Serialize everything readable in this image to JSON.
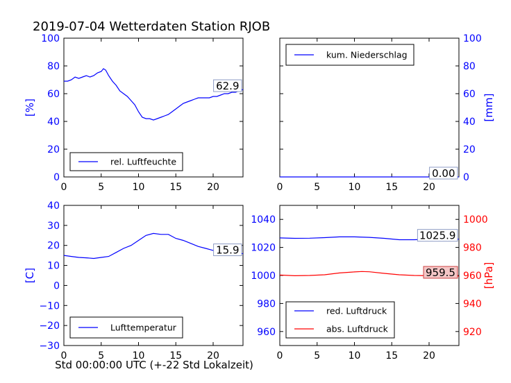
{
  "page_title": "2019-07-04 Wetterdaten Station RJOB",
  "xlabel": "Std 00:00:00 UTC (+-22 Std Lokalzeit)",
  "colors": {
    "primary": "#0000ff",
    "secondary": "#ff0000",
    "axis": "#000000"
  },
  "chart_data": [
    {
      "type": "line",
      "panel": "top-left",
      "xlim": [
        0,
        24
      ],
      "ylim": [
        0,
        100
      ],
      "xticks": [
        0,
        5,
        10,
        15,
        20
      ],
      "yticks": [
        0,
        20,
        40,
        60,
        80,
        100
      ],
      "ylabel": "[%]",
      "ylabel_side": "left",
      "ylabel_color": "#0000ff",
      "ytick_color": "#0000ff",
      "legend_placement": "lower-left",
      "series": [
        {
          "name": "rel. Luftfeuchte",
          "color": "#0000ff",
          "x": [
            0,
            0.5,
            1,
            1.5,
            2,
            2.5,
            3,
            3.5,
            4,
            4.5,
            5,
            5.3,
            5.6,
            6,
            6.5,
            7,
            7.5,
            8,
            8.5,
            9,
            9.5,
            10,
            10.5,
            11,
            11.5,
            12,
            12.5,
            13,
            13.5,
            14,
            14.5,
            15,
            15.5,
            16,
            16.5,
            17,
            17.5,
            18,
            18.5,
            19,
            19.5,
            20,
            20.5,
            21,
            21.5,
            22,
            22.5,
            23,
            23.5,
            24
          ],
          "y": [
            69,
            69,
            70,
            72,
            71,
            72,
            73,
            72,
            73,
            75,
            76,
            78,
            77,
            73,
            69,
            66,
            62,
            60,
            58,
            55,
            52,
            47,
            43,
            42,
            42,
            41,
            42,
            43,
            44,
            45,
            47,
            49,
            51,
            53,
            54,
            55,
            56,
            57,
            57,
            57,
            57,
            58,
            58,
            59,
            60,
            60,
            61,
            61,
            62,
            63
          ]
        }
      ],
      "last_value_label": "62.9"
    },
    {
      "type": "line",
      "panel": "top-right",
      "xlim": [
        0,
        24
      ],
      "ylim": [
        0,
        100
      ],
      "xticks": [
        0,
        5,
        10,
        15,
        20
      ],
      "yticks": [
        0,
        20,
        40,
        60,
        80,
        100
      ],
      "ylabel": "[mm]",
      "ylabel_side": "right",
      "ylabel_color": "#0000ff",
      "ytick_color": "#0000ff",
      "legend_placement": "upper-left",
      "series": [
        {
          "name": "kum. Niederschlag",
          "color": "#0000ff",
          "x": [
            0,
            24
          ],
          "y": [
            0,
            0
          ]
        }
      ],
      "last_value_label": "0.00"
    },
    {
      "type": "line",
      "panel": "bottom-left",
      "xlim": [
        0,
        24
      ],
      "ylim": [
        -30,
        40
      ],
      "xticks": [
        0,
        5,
        10,
        15,
        20
      ],
      "yticks": [
        -30,
        -20,
        -10,
        0,
        10,
        20,
        30,
        40
      ],
      "ylabel": "[C]",
      "ylabel_side": "left",
      "ylabel_color": "#0000ff",
      "ytick_color": "#0000ff",
      "legend_placement": "lower-left",
      "series": [
        {
          "name": "Lufttemperatur",
          "color": "#0000ff",
          "x": [
            0,
            1,
            2,
            3,
            4,
            5,
            6,
            7,
            8,
            9,
            10,
            11,
            12,
            13,
            14,
            15,
            16,
            17,
            18,
            19,
            20,
            21,
            22,
            23,
            24
          ],
          "y": [
            15,
            14.5,
            14,
            13.8,
            13.5,
            14,
            14.5,
            16.5,
            18.5,
            20,
            22.5,
            25,
            26,
            25.5,
            25.5,
            23.5,
            22.5,
            21,
            19.5,
            18.5,
            17.5,
            17,
            16.5,
            16,
            15.9
          ]
        }
      ],
      "last_value_label": "15.9"
    },
    {
      "type": "line",
      "panel": "bottom-right",
      "xlim": [
        0,
        24
      ],
      "ylim": [
        950,
        1050
      ],
      "ylim_right": [
        910,
        1010
      ],
      "xticks": [
        0,
        5,
        10,
        15,
        20
      ],
      "yticks": [
        960,
        980,
        1000,
        1020,
        1040
      ],
      "yticks_right": [
        920,
        940,
        960,
        980,
        1000
      ],
      "ylabel": "[hPa]",
      "ylabel_side": "right",
      "ylabel_color": "#ff0000",
      "ytick_color": "#0000ff",
      "ytick_right_color": "#ff0000",
      "legend_placement": "lower-left",
      "series": [
        {
          "name": "red. Luftdruck",
          "color": "#0000ff",
          "axis": "left",
          "x": [
            0,
            2,
            4,
            6,
            8,
            10,
            12,
            14,
            16,
            18,
            20,
            22,
            24
          ],
          "y": [
            1026.8,
            1026.5,
            1026.6,
            1027,
            1027.5,
            1027.5,
            1027.2,
            1026.5,
            1025.5,
            1025.5,
            1025.8,
            1025.9,
            1025.9
          ]
        },
        {
          "name": "abs. Luftdruck",
          "color": "#ff0000",
          "axis": "right",
          "x": [
            0,
            2,
            4,
            6,
            8,
            10,
            11,
            12,
            14,
            16,
            18,
            20,
            22,
            24
          ],
          "y": [
            960.3,
            959.8,
            960,
            960.5,
            961.8,
            962.5,
            962.8,
            962.6,
            961.5,
            960.5,
            960,
            959.8,
            959.6,
            959.5
          ]
        }
      ],
      "last_value_label": "1025.9",
      "last_value_label_2": "959.5"
    }
  ]
}
